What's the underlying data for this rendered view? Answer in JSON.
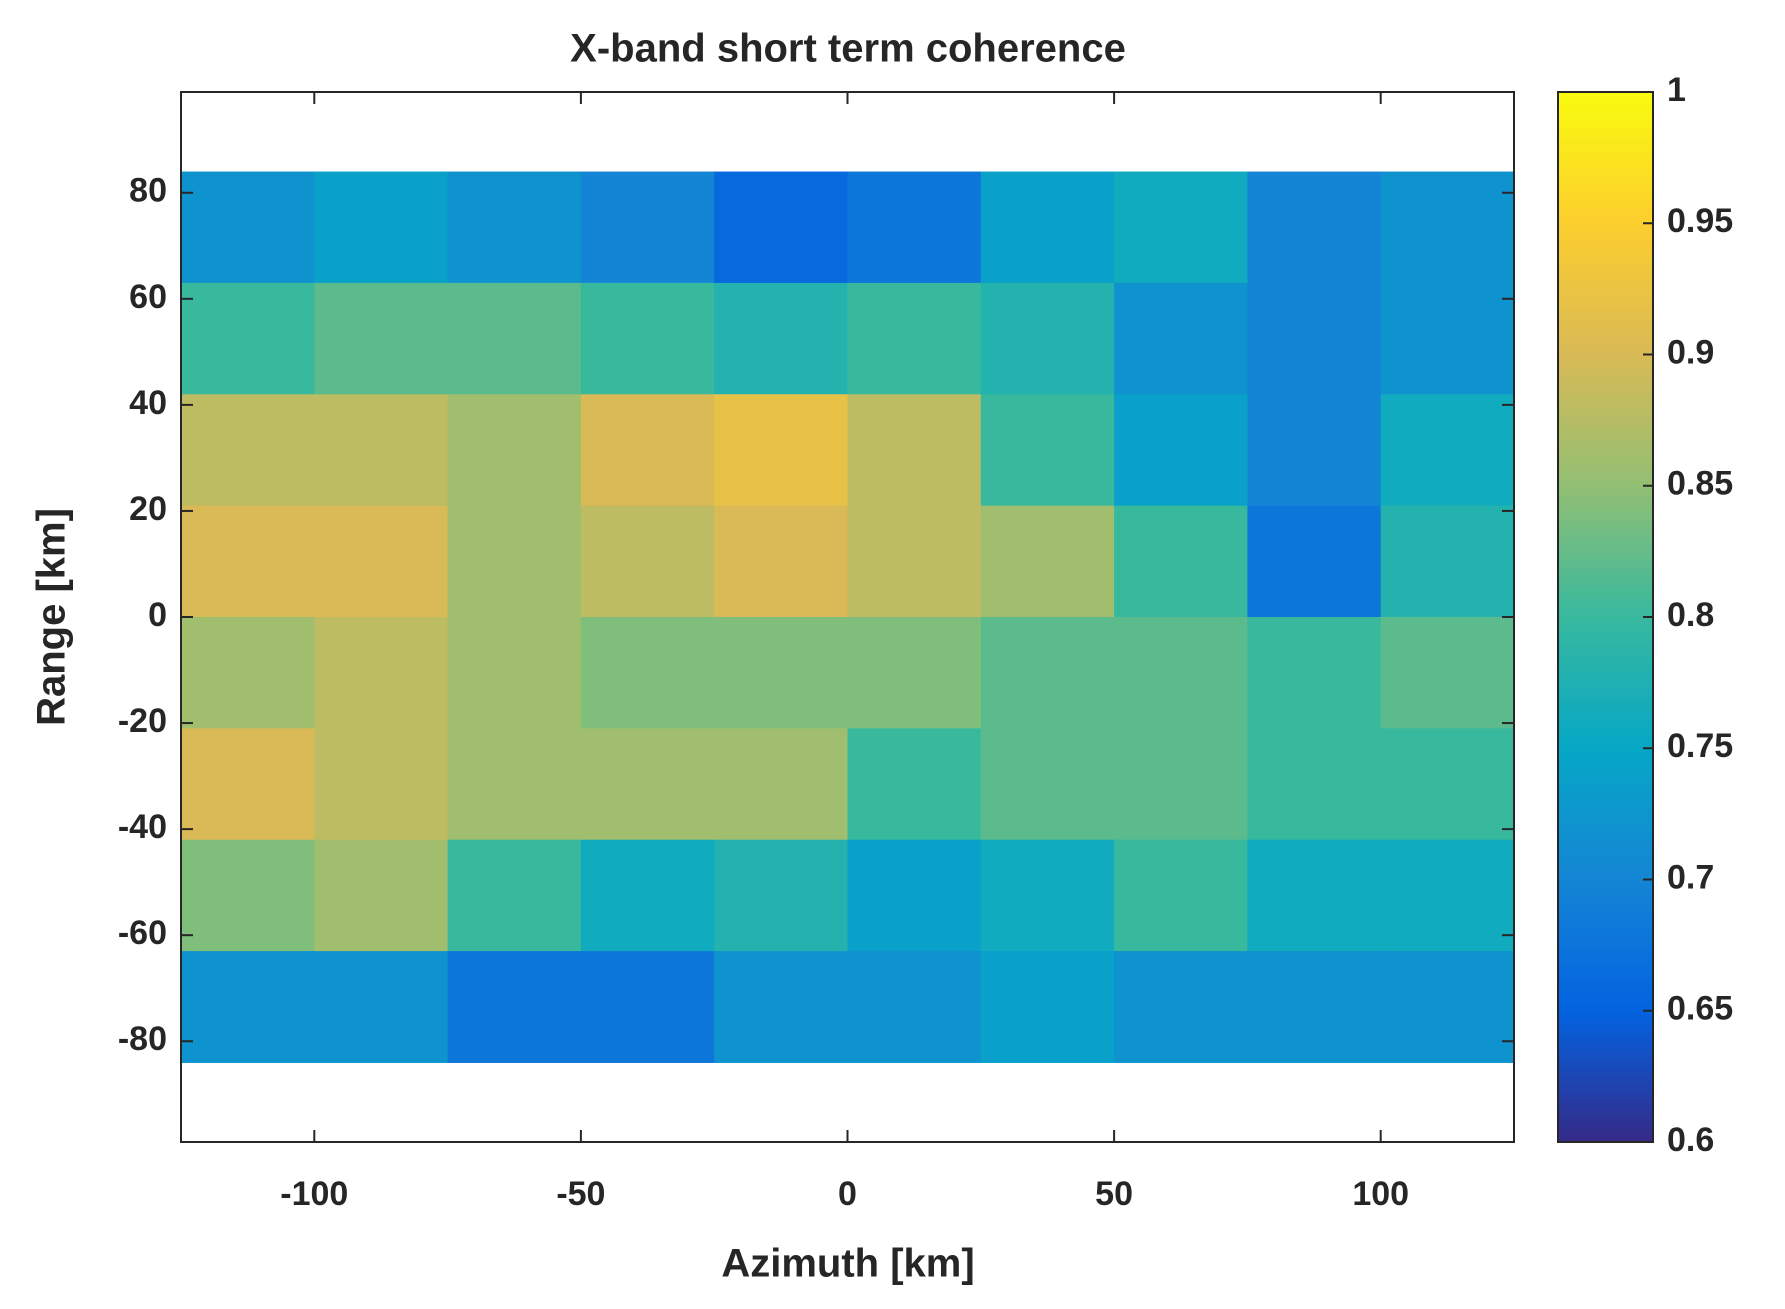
{
  "chart_data": {
    "type": "heatmap",
    "title": "X-band short term coherence",
    "x_label": "Azimuth [km]",
    "y_label": "Range [km]",
    "colormap": "parula",
    "x": [
      -112.5,
      -87.5,
      -62.5,
      -37.5,
      -12.5,
      12.5,
      37.5,
      62.5,
      87.5,
      112.5
    ],
    "y": [
      73.5,
      52.5,
      31.5,
      10.5,
      -10.5,
      -31.5,
      -52.5,
      -73.5
    ],
    "z": [
      [
        0.72,
        0.74,
        0.72,
        0.7,
        0.66,
        0.68,
        0.74,
        0.76,
        0.7,
        0.72
      ],
      [
        0.8,
        0.82,
        0.82,
        0.8,
        0.78,
        0.8,
        0.78,
        0.72,
        0.7,
        0.72
      ],
      [
        0.88,
        0.88,
        0.86,
        0.9,
        0.92,
        0.88,
        0.8,
        0.74,
        0.7,
        0.76
      ],
      [
        0.9,
        0.9,
        0.86,
        0.88,
        0.9,
        0.88,
        0.86,
        0.8,
        0.68,
        0.78
      ],
      [
        0.86,
        0.88,
        0.86,
        0.84,
        0.84,
        0.84,
        0.82,
        0.82,
        0.8,
        0.82
      ],
      [
        0.9,
        0.88,
        0.86,
        0.86,
        0.86,
        0.8,
        0.82,
        0.82,
        0.8,
        0.8
      ],
      [
        0.84,
        0.86,
        0.8,
        0.76,
        0.78,
        0.74,
        0.76,
        0.8,
        0.76,
        0.76
      ],
      [
        0.72,
        0.72,
        0.68,
        0.68,
        0.72,
        0.72,
        0.74,
        0.72,
        0.72,
        0.72
      ]
    ],
    "xlim": [
      -125,
      125
    ],
    "ylim": [
      -99,
      99
    ],
    "xticks": [
      -100,
      -50,
      0,
      50,
      100
    ],
    "yticks": [
      -80,
      -60,
      -40,
      -20,
      0,
      20,
      40,
      60,
      80
    ],
    "clim": [
      0.6,
      1
    ],
    "cticks": [
      0.6,
      0.65,
      0.7,
      0.75,
      0.8,
      0.85,
      0.9,
      0.95,
      1
    ]
  }
}
